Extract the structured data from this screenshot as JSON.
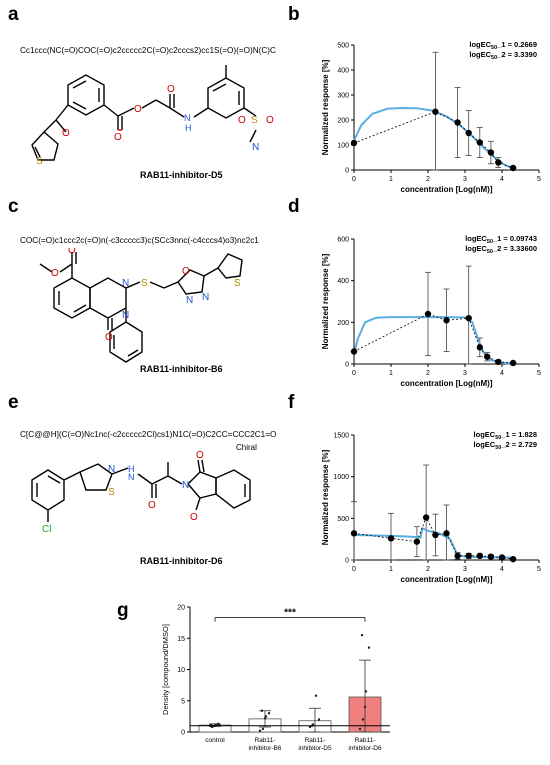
{
  "panels": {
    "a": {
      "letter": "a",
      "smiles": "Cc1ccc(NC(=O)COC(=O)c2ccccc2C(=O)c2cccs2)cc1S(=O)(=O)N(C)C",
      "compound": "RAB11-inhibitor-D5"
    },
    "b": {
      "letter": "b"
    },
    "c": {
      "letter": "c",
      "smiles": "COC(=O)c1ccc2c(=O)n(-c3ccccc3)c(SCc3nnc(-c4cccs4)o3)nc2c1",
      "compound": "RAB11-inhibitor-B6"
    },
    "d": {
      "letter": "d"
    },
    "e": {
      "letter": "e",
      "smiles": "C[C@@H](C(=O)Nc1nc(-c2ccccc2Cl)cs1)N1C(=O)C2CC=CCC2C1=O",
      "chiral": "Chiral",
      "compound": "RAB11-inhibitor-D6"
    },
    "f": {
      "letter": "f"
    },
    "g": {
      "letter": "g"
    }
  },
  "chart_data": [
    {
      "panel": "b",
      "type": "scatter",
      "xlabel": "concentration [Log(nM)]",
      "ylabel": "Normalized response [%]",
      "xlim": [
        0,
        5
      ],
      "ylim": [
        0,
        500
      ],
      "xticks": [
        "0",
        "1",
        "2",
        "3",
        "4",
        "5"
      ],
      "yticks": [
        "0",
        "100",
        "200",
        "300",
        "400",
        "500"
      ],
      "annotations": [
        "logEC50_1 = 0.2669",
        "logEC50_2 = 3.3390"
      ],
      "points": {
        "x": [
          0.0,
          2.2,
          2.8,
          3.1,
          3.4,
          3.7,
          3.9,
          4.3
        ],
        "y": [
          108,
          233,
          190,
          148,
          110,
          70,
          30,
          8
        ],
        "err": [
          0,
          238,
          140,
          90,
          60,
          45,
          20,
          5
        ]
      },
      "fit": {
        "x": [
          0,
          0.2,
          0.5,
          0.9,
          1.3,
          1.7,
          2.1,
          2.5,
          2.9,
          3.2,
          3.5,
          3.8,
          4.1,
          4.3
        ],
        "y": [
          118,
          180,
          225,
          245,
          248,
          247,
          238,
          215,
          175,
          135,
          90,
          50,
          18,
          8
        ]
      },
      "line_color": "#5aaee0",
      "grid": false
    },
    {
      "panel": "d",
      "type": "scatter",
      "xlabel": "concentration [Log(nM)]",
      "ylabel": "Normalized response [%]",
      "xlim": [
        0,
        5
      ],
      "ylim": [
        0,
        600
      ],
      "xticks": [
        "0",
        "1",
        "2",
        "3",
        "4",
        "5"
      ],
      "yticks": [
        "0",
        "200",
        "400",
        "600"
      ],
      "annotations": [
        "logEC50_1 = 0.09743",
        "logEC50_2 = 3.33600"
      ],
      "points": {
        "x": [
          0.0,
          2.0,
          2.5,
          3.1,
          3.4,
          3.6,
          3.9,
          4.3
        ],
        "y": [
          60,
          240,
          210,
          220,
          80,
          35,
          10,
          5
        ],
        "err": [
          0,
          200,
          150,
          250,
          45,
          20,
          8,
          4
        ]
      },
      "fit": {
        "x": [
          0,
          0.1,
          0.3,
          0.6,
          1.0,
          1.5,
          2.0,
          2.5,
          3.0,
          3.2,
          3.35,
          3.5,
          3.7,
          3.9,
          4.1,
          4.3
        ],
        "y": [
          45,
          120,
          200,
          222,
          225,
          225,
          225,
          225,
          224,
          200,
          120,
          55,
          20,
          8,
          4,
          3
        ]
      },
      "line_color": "#5aaee0",
      "grid": false
    },
    {
      "panel": "f",
      "type": "scatter",
      "xlabel": "concentration [Log(nM)]",
      "ylabel": "Normalized response [%]",
      "xlim": [
        0,
        5
      ],
      "ylim": [
        0,
        1500
      ],
      "xticks": [
        "0",
        "1",
        "2",
        "3",
        "4",
        "5"
      ],
      "yticks": [
        "0",
        "500",
        "1000",
        "1500"
      ],
      "annotations": [
        "logEC50_1 = 1.828",
        "logEC50_2 = 2.729"
      ],
      "points": {
        "x": [
          0.0,
          1.0,
          1.7,
          1.95,
          2.2,
          2.5,
          2.8,
          3.1,
          3.4,
          3.7,
          4.0,
          4.3
        ],
        "y": [
          320,
          260,
          220,
          510,
          300,
          320,
          50,
          50,
          50,
          40,
          30,
          10
        ],
        "err": [
          380,
          300,
          180,
          630,
          250,
          340,
          40,
          30,
          20,
          20,
          15,
          8
        ]
      },
      "fit": {
        "x": [
          0,
          0.5,
          1.0,
          1.5,
          1.8,
          1.85,
          2.0,
          2.3,
          2.6,
          2.7,
          2.8,
          3.0,
          3.5,
          4.0,
          4.3
        ],
        "y": [
          300,
          295,
          290,
          280,
          270,
          380,
          350,
          320,
          250,
          150,
          60,
          40,
          35,
          30,
          28
        ]
      },
      "line_color": "#5aaee0",
      "grid": false
    },
    {
      "panel": "g",
      "type": "bar",
      "ylabel": "Density [compound/DMSO]",
      "categories": [
        "control",
        "Rab11-\ninhibitor-B6",
        "Rab11-\ninhibitor-D5",
        "Rab11-\ninhibitor-D6"
      ],
      "values": [
        1.1,
        2.1,
        1.8,
        5.6
      ],
      "errors": [
        0.2,
        1.3,
        2.0,
        5.9
      ],
      "ylim": [
        0,
        20
      ],
      "yticks": [
        "0",
        "5",
        "10",
        "15",
        "20"
      ],
      "bar_colors": [
        "#ffffff",
        "#ffffff",
        "#ffffff",
        "#f08080"
      ],
      "reference_line": 1,
      "significance": {
        "from": 0,
        "to": 3,
        "label": "***"
      },
      "dots": [
        [
          1.0,
          0.9,
          1.1,
          1.2,
          0.8,
          1.0,
          1.3,
          1.1
        ],
        [
          0.2,
          0.5,
          2.5,
          3.0,
          3.4,
          2.2
        ],
        [
          0.8,
          1.2,
          5.8,
          2.0,
          1.0
        ],
        [
          0.5,
          2.0,
          6.5,
          13.5,
          15.5,
          4.0
        ]
      ]
    }
  ]
}
